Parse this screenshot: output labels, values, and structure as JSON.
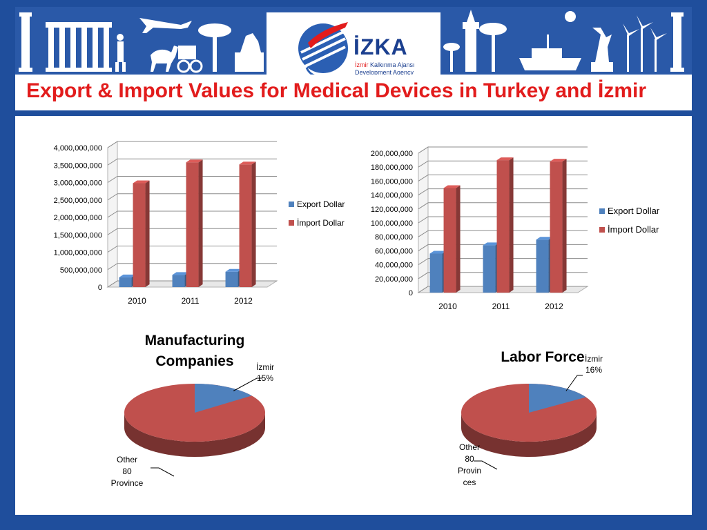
{
  "page": {
    "title": "Export & Import Values for Medical Devices in Turkey and İzmir"
  },
  "logo": {
    "name": "İZKA",
    "sub_line1_prefix": "İzmir",
    "sub_line1_rest": "Kalkınma Ajansı",
    "sub_line2": "Development Agency"
  },
  "colors": {
    "frame": "#1f4e9c",
    "export": "#4f81bd",
    "import": "#c0504d",
    "title": "#e21c1c"
  },
  "chart_data": [
    {
      "type": "bar",
      "categories": [
        "2010",
        "2011",
        "2012"
      ],
      "series": [
        {
          "name": "Export Dollar",
          "values": [
            280000000,
            350000000,
            440000000
          ]
        },
        {
          "name": "İmport Dollar",
          "values": [
            2980000000,
            3580000000,
            3520000000
          ]
        }
      ],
      "ylim": [
        0,
        4000000000
      ],
      "yticks": [
        "0",
        "500,000,000",
        "1,000,000,000",
        "1,500,000,000",
        "2,000,000,000",
        "2,500,000,000",
        "3,000,000,000",
        "3,500,000,000",
        "4,000,000,000"
      ],
      "legend": "right",
      "grid": true
    },
    {
      "type": "bar",
      "categories": [
        "2010",
        "2011",
        "2012"
      ],
      "series": [
        {
          "name": "Export Dollar",
          "values": [
            56000000,
            68000000,
            76000000
          ]
        },
        {
          "name": "İmport Dollar",
          "values": [
            150000000,
            190000000,
            188000000
          ]
        }
      ],
      "ylim": [
        0,
        200000000
      ],
      "yticks": [
        "0",
        "20,000,000",
        "40,000,000",
        "60,000,000",
        "80,000,000",
        "100,000,000",
        "120,000,000",
        "140,000,000",
        "160,000,000",
        "180,000,000",
        "200,000,000"
      ],
      "legend": "right",
      "grid": true
    },
    {
      "type": "pie",
      "title": "Manufacturing Companies",
      "slices": [
        {
          "label": "İzmir",
          "value": 15,
          "pct": "15%"
        },
        {
          "label": "Other 80 Province",
          "value": 85
        }
      ]
    },
    {
      "type": "pie",
      "title": "Labor Force",
      "slices": [
        {
          "label": "İzmir",
          "value": 16,
          "pct": "16%"
        },
        {
          "label": "Other 80 Provinces",
          "value": 84
        }
      ]
    }
  ]
}
